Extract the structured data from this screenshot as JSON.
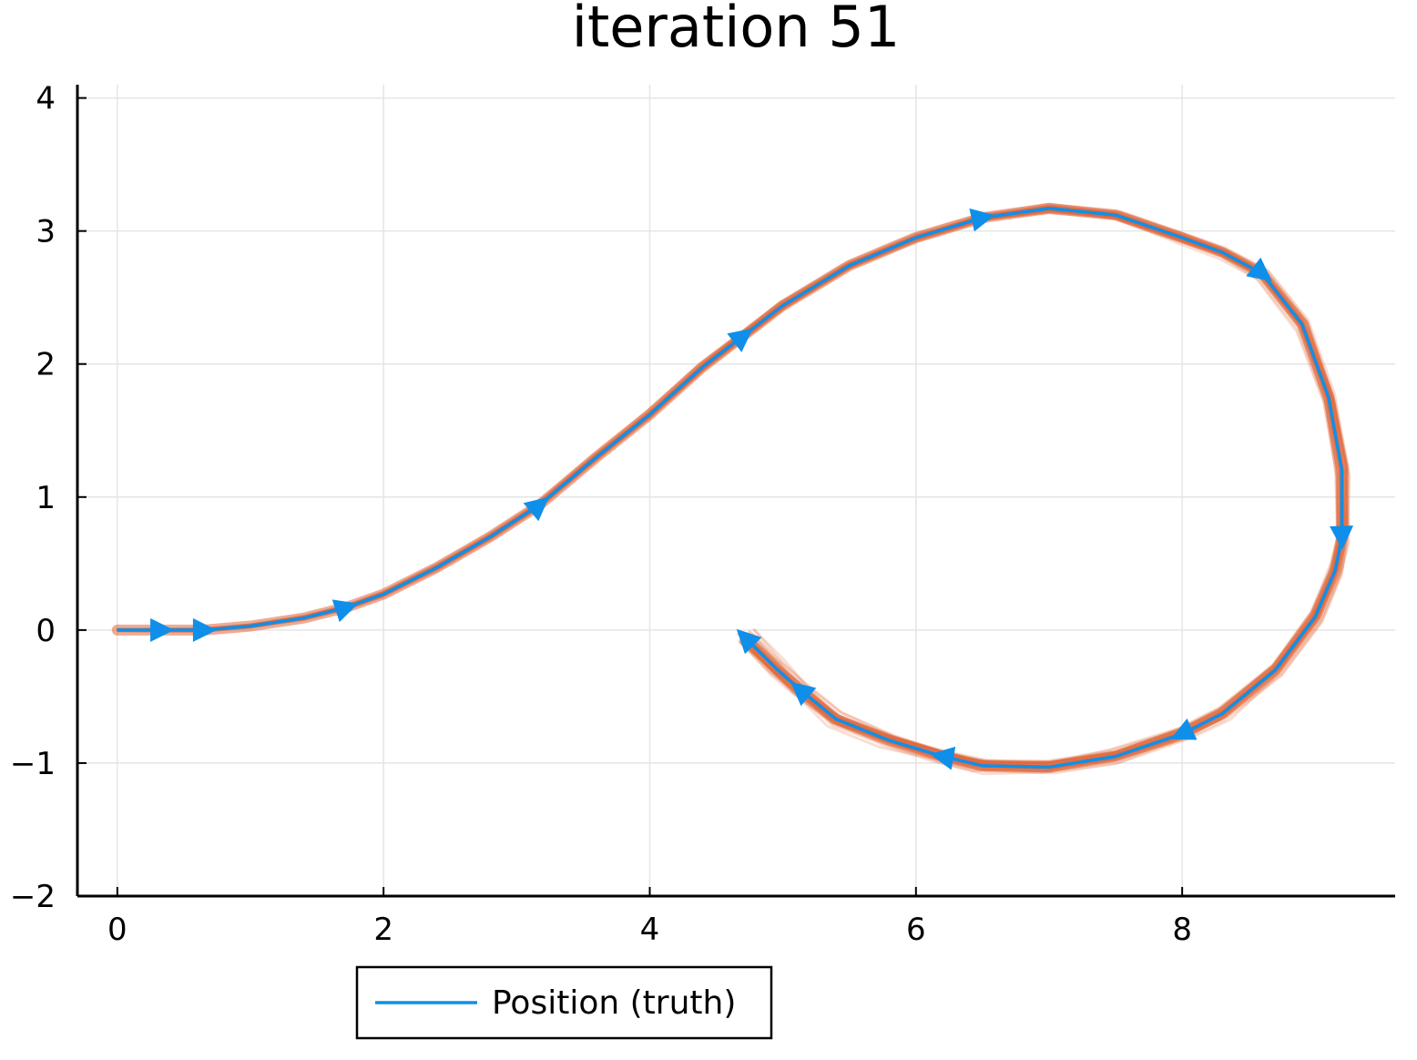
{
  "chart_data": {
    "type": "line",
    "title": "iteration 51",
    "xlabel": "",
    "ylabel": "",
    "xlim": [
      -0.3,
      9.6
    ],
    "ylim": [
      -2,
      4.1
    ],
    "xticks": [
      0,
      2,
      4,
      6,
      8
    ],
    "yticks": [
      -2,
      -1,
      0,
      1,
      2,
      3,
      4
    ],
    "xtick_labels": [
      "0",
      "2",
      "4",
      "6",
      "8"
    ],
    "ytick_labels": [
      "−2",
      "−1",
      "0",
      "1",
      "2",
      "3",
      "4"
    ],
    "grid": true,
    "legend_position": "bottom-outside",
    "colors": {
      "truth": "#0f8fe9",
      "particles": "#e0683c",
      "grid": "#e5e5e5",
      "axis": "#000000"
    },
    "series": [
      {
        "name": "Position (truth)",
        "x": [
          0.0,
          0.33,
          0.65,
          1.0,
          1.4,
          1.72,
          2.0,
          2.4,
          2.8,
          3.17,
          3.6,
          4.0,
          4.4,
          4.7,
          5.0,
          5.5,
          6.0,
          6.5,
          7.0,
          7.5,
          8.0,
          8.3,
          8.6,
          8.9,
          9.1,
          9.2,
          9.2,
          9.15,
          9.0,
          8.7,
          8.3,
          8.0,
          7.5,
          7.0,
          6.5,
          6.2,
          5.8,
          5.4,
          5.13,
          4.95,
          4.72
        ],
        "y": [
          0.0,
          0.0,
          0.0,
          0.03,
          0.09,
          0.17,
          0.27,
          0.47,
          0.7,
          0.94,
          1.3,
          1.62,
          1.98,
          2.21,
          2.44,
          2.74,
          2.95,
          3.1,
          3.17,
          3.12,
          2.95,
          2.84,
          2.68,
          2.3,
          1.75,
          1.2,
          0.7,
          0.45,
          0.1,
          -0.3,
          -0.63,
          -0.78,
          -0.95,
          -1.03,
          -1.02,
          -0.95,
          -0.83,
          -0.67,
          -0.45,
          -0.29,
          -0.06
        ]
      }
    ],
    "arrow_markers": [
      {
        "x": 0.33,
        "y": 0.0,
        "dir": 0
      },
      {
        "x": 0.65,
        "y": 0.0,
        "dir": 0
      },
      {
        "x": 1.72,
        "y": 0.17,
        "dir": 18
      },
      {
        "x": 3.17,
        "y": 0.94,
        "dir": 40
      },
      {
        "x": 4.7,
        "y": 2.21,
        "dir": 38
      },
      {
        "x": 6.5,
        "y": 3.1,
        "dir": 12
      },
      {
        "x": 8.6,
        "y": 2.68,
        "dir": -38
      },
      {
        "x": 9.2,
        "y": 0.7,
        "dir": -88
      },
      {
        "x": 8.0,
        "y": -0.78,
        "dir": -155
      },
      {
        "x": 6.2,
        "y": -0.95,
        "dir": 170
      },
      {
        "x": 5.13,
        "y": -0.45,
        "dir": 140
      },
      {
        "x": 4.72,
        "y": -0.06,
        "dir": 135
      }
    ],
    "particle_count": 40
  }
}
